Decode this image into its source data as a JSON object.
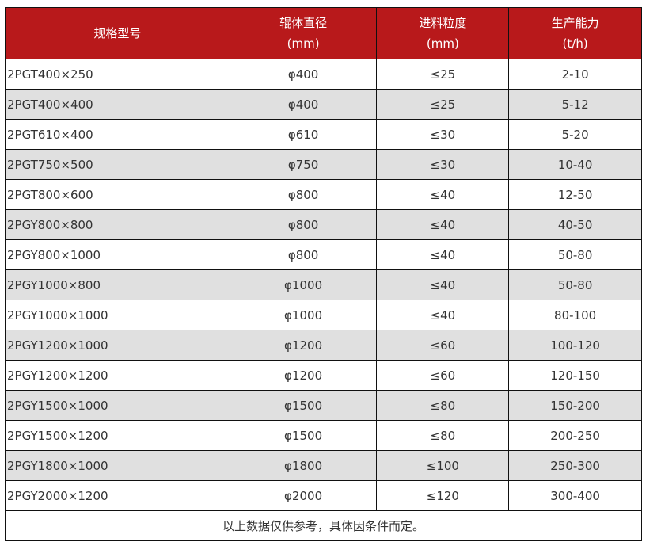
{
  "header": [
    [
      "规格型号",
      ""
    ],
    [
      "辊体直径",
      "(mm)"
    ],
    [
      "进料粒度",
      "(mm)"
    ],
    [
      "生产能力",
      "(t/h)"
    ]
  ],
  "rows": [
    [
      "2PGT400×250",
      "φ400",
      "≤25",
      "2-10"
    ],
    [
      "2PGT400×400",
      "φ400",
      "≤25",
      "5-12"
    ],
    [
      "2PGT610×400",
      "φ610",
      "≤30",
      "5-20"
    ],
    [
      "2PGT750×500",
      "φ750",
      "≤30",
      "10-40"
    ],
    [
      "2PGT800×600",
      "φ800",
      "≤40",
      "12-50"
    ],
    [
      "2PGY800×800",
      "φ800",
      "≤40",
      "40-50"
    ],
    [
      "2PGY800×1000",
      "φ800",
      "≤40",
      "50-80"
    ],
    [
      "2PGY1000×800",
      "φ1000",
      "≤40",
      "50-80"
    ],
    [
      "2PGY1000×1000",
      "φ1000",
      "≤40",
      "80-100"
    ],
    [
      "2PGY1200×1000",
      "φ1200",
      "≤60",
      "100-120"
    ],
    [
      "2PGY1200×1200",
      "φ1200",
      "≤60",
      "120-150"
    ],
    [
      "2PGY1500×1000",
      "φ1500",
      "≤80",
      "150-200"
    ],
    [
      "2PGY1500×1200",
      "φ1500",
      "≤80",
      "200-250"
    ],
    [
      "2PGY1800×1000",
      "φ1800",
      "≤100",
      "250-300"
    ],
    [
      "2PGY2000×1200",
      "φ2000",
      "≤120",
      "300-400"
    ]
  ],
  "footer": "以上数据仅供参考，具体因条件而定。",
  "colors": {
    "header_bg": "#b8191b",
    "alt_row": "#e0e0e0"
  }
}
